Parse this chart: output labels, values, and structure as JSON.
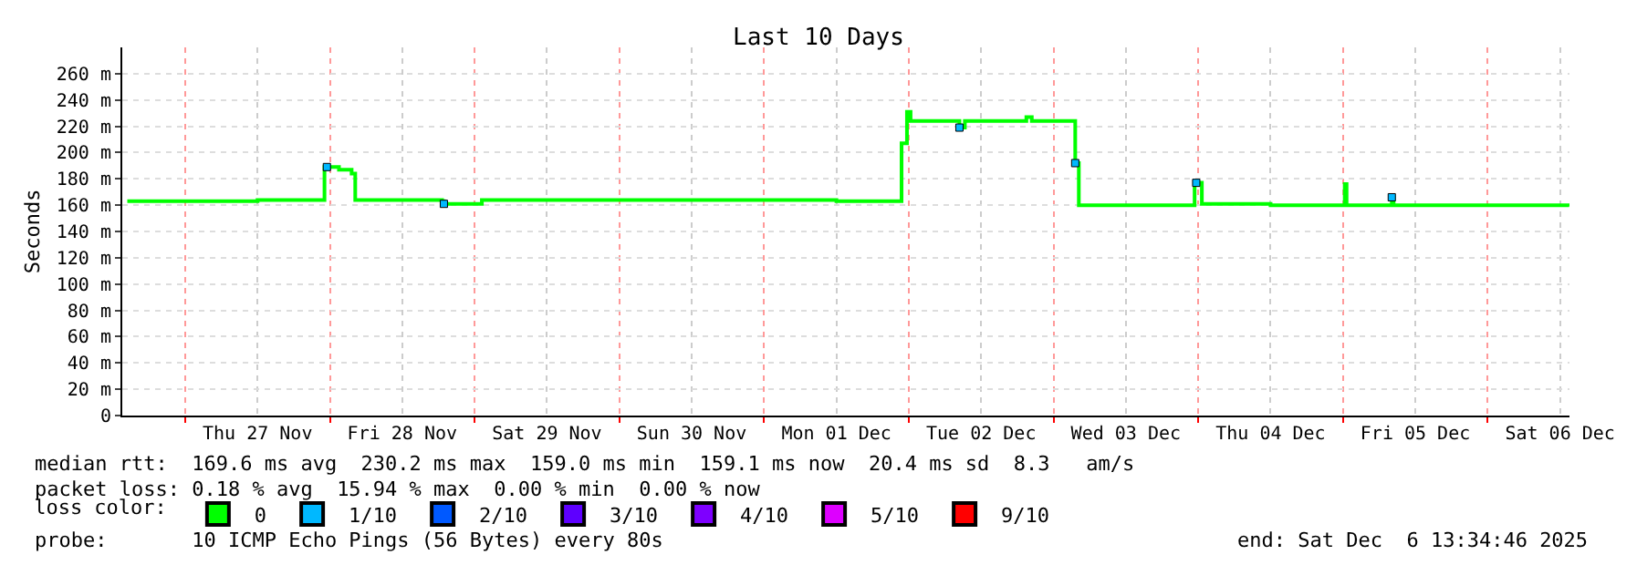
{
  "chart_data": {
    "type": "step",
    "title": "Last 10 Days",
    "ylabel": "Seconds",
    "xlim": [
      "2025-11-26T13:34",
      "2025-12-06T13:34"
    ],
    "xticks": [
      {
        "value": "2025-11-27T00:00",
        "label": null
      },
      {
        "value": "2025-11-28T00:00",
        "label": null
      },
      {
        "value": "2025-11-29T00:00",
        "label": null
      },
      {
        "value": "2025-11-30T00:00",
        "label": null
      },
      {
        "value": "2025-12-01T00:00",
        "label": null
      },
      {
        "value": "2025-12-02T00:00",
        "label": null
      },
      {
        "value": "2025-12-03T00:00",
        "label": null
      },
      {
        "value": "2025-12-04T00:00",
        "label": null
      },
      {
        "value": "2025-12-05T00:00",
        "label": null
      },
      {
        "value": "2025-12-06T00:00",
        "label": null
      },
      {
        "value": "2025-11-27T12:00",
        "label": "Thu 27 Nov"
      },
      {
        "value": "2025-11-28T12:00",
        "label": "Fri 28 Nov"
      },
      {
        "value": "2025-11-29T12:00",
        "label": "Sat 29 Nov"
      },
      {
        "value": "2025-11-30T12:00",
        "label": "Sun 30 Nov"
      },
      {
        "value": "2025-12-01T12:00",
        "label": "Mon 01 Dec"
      },
      {
        "value": "2025-12-02T12:00",
        "label": "Tue 02 Dec"
      },
      {
        "value": "2025-12-03T12:00",
        "label": "Wed 03 Dec"
      },
      {
        "value": "2025-12-04T12:00",
        "label": "Thu 04 Dec"
      },
      {
        "value": "2025-12-05T12:00",
        "label": "Fri 05 Dec"
      },
      {
        "value": "2025-12-06T12:00",
        "label": "Sat 06 Dec"
      }
    ],
    "ylim": [
      0,
      280
    ],
    "yticks": [
      0,
      {
        "value": 20,
        "label": "20 m"
      },
      {
        "value": 40,
        "label": "40 m"
      },
      {
        "value": 60,
        "label": "60 m"
      },
      {
        "value": 80,
        "label": "80 m"
      },
      {
        "value": 100,
        "label": "100 m"
      },
      {
        "value": 120,
        "label": "120 m"
      },
      {
        "value": 140,
        "label": "140 m"
      },
      {
        "value": 160,
        "label": "160 m"
      },
      {
        "value": 180,
        "label": "180 m"
      },
      {
        "value": 200,
        "label": "200 m"
      },
      {
        "value": 220,
        "label": "220 m"
      },
      {
        "value": 240,
        "label": "240 m"
      },
      {
        "value": 260,
        "label": "260 m"
      }
    ],
    "grid": true,
    "legend": "bottom",
    "legend_title": "loss color:",
    "series": [
      {
        "name": "0",
        "color": "#00ff00",
        "x": [
          "2025-11-26T14:24",
          "2025-11-27T00:00",
          "2025-11-27T12:00",
          "2025-11-27T22:48",
          "2025-11-27T23:06",
          "2025-11-28T01:30",
          "2025-11-28T03:36",
          "2025-11-28T04:12",
          "2025-11-28T12:00",
          "2025-11-28T18:36",
          "2025-11-28T18:54",
          "2025-11-29T00:54",
          "2025-11-29T01:12",
          "2025-11-29T12:00",
          "2025-11-30T00:00",
          "2025-11-30T12:00",
          "2025-12-01T00:00",
          "2025-12-01T12:00",
          "2025-12-01T22:12",
          "2025-12-01T22:48",
          "2025-12-01T23:42",
          "2025-12-02T00:18",
          "2025-12-02T08:06",
          "2025-12-02T08:24",
          "2025-12-02T09:18",
          "2025-12-02T19:30",
          "2025-12-02T20:24",
          "2025-12-03T00:00",
          "2025-12-03T03:18",
          "2025-12-03T03:36",
          "2025-12-03T04:12",
          "2025-12-03T12:00",
          "2025-12-03T23:06",
          "2025-12-03T23:24",
          "2025-12-04T00:18",
          "2025-12-04T00:36",
          "2025-12-04T12:00",
          "2025-12-05T00:00",
          "2025-12-05T00:18",
          "2025-12-05T00:36",
          "2025-12-05T07:48",
          "2025-12-05T08:06",
          "2025-12-05T08:24",
          "2025-12-06T00:00",
          "2025-12-06T13:30"
        ],
        "values": [
          163,
          163,
          164,
          164,
          189,
          187,
          184,
          164,
          164,
          163,
          161,
          161,
          164,
          164,
          164,
          164,
          164,
          163,
          163,
          207,
          231,
          224,
          224,
          219,
          224,
          227,
          224,
          224,
          224,
          192,
          160,
          160,
          160,
          177,
          177,
          161,
          160,
          160,
          176,
          160,
          160,
          166,
          160,
          160,
          159
        ]
      },
      {
        "name": "1/10",
        "color": "#00b8ff",
        "type": "scatter",
        "marker": "square",
        "x": [
          "2025-11-27T23:30",
          "2025-11-28T18:54",
          "2025-12-02T08:24",
          "2025-12-03T03:36",
          "2025-12-03T23:40",
          "2025-12-05T08:06"
        ],
        "values": [
          189,
          161,
          219,
          192,
          177,
          166
        ]
      },
      {
        "name": "2/10",
        "color": "#0059ff",
        "type": "scatter",
        "marker": "square"
      },
      {
        "name": "3/10",
        "color": "#5e00ff",
        "type": "scatter",
        "marker": "square"
      },
      {
        "name": "4/10",
        "color": "#7e00ff",
        "type": "scatter",
        "marker": "square"
      },
      {
        "name": "5/10",
        "color": "#dd00ff",
        "type": "scatter",
        "marker": "square"
      },
      {
        "name": "9/10",
        "color": "#ff0000",
        "type": "scatter",
        "marker": "square"
      }
    ],
    "annotations": [
      "median rtt:  169.6 ms avg  230.2 ms max  159.0 ms min  159.1 ms now  20.4 ms sd  8.3   am/s",
      "packet loss: 0.18 % avg  15.94 % max  0.00 % min  0.00 % now",
      "probe:       10 ICMP Echo Pings (56 Bytes) every 80s",
      "end: Sat Dec  6 13:34:46 2025"
    ]
  }
}
